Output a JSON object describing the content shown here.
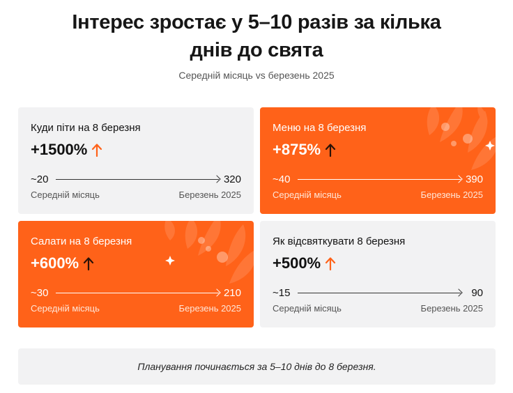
{
  "header": {
    "title_line1": "Інтерес зростає у 5–10 разів за кілька",
    "title_line2": "днів до свята",
    "subtitle": "Середній місяць vs березень 2025"
  },
  "cards": [
    {
      "title": "Куди піти на 8 березня",
      "value": "+1500%",
      "from": "~20",
      "to": "320",
      "left_caption": "Середній місяць",
      "right_caption": "Березень 2025",
      "style": "light"
    },
    {
      "title": "Меню на 8 березня",
      "value": "+875%",
      "from": "~40",
      "to": "390",
      "left_caption": "Середній місяць",
      "right_caption": "Березень 2025",
      "style": "orange"
    },
    {
      "title": "Салати на 8 березня",
      "value": "+600%",
      "from": "~30",
      "to": "210",
      "left_caption": "Середній місяць",
      "right_caption": "Березень 2025",
      "style": "orange"
    },
    {
      "title": "Як відсвяткувати 8 березня",
      "value": "+500%",
      "from": "~15",
      "to": "90",
      "left_caption": "Середній місяць",
      "right_caption": "Березень 2025",
      "style": "light"
    }
  ],
  "footer": {
    "note": "Планування починається за 5–10 днів до 8 березня."
  },
  "colors": {
    "accent_orange": "#ff6219",
    "card_grey": "#f2f2f3",
    "arrow_orange": "#ff6219",
    "arrow_dark": "#2a1208"
  },
  "icons": {
    "growth_arrow": "arrow-up-icon",
    "decoration": "leaf-branch-decoration"
  }
}
